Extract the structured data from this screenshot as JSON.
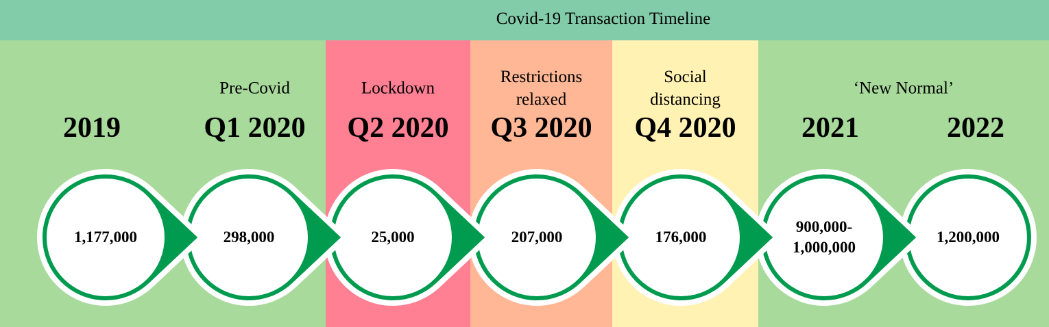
{
  "title": "Covid-19 Transaction Timeline",
  "colors": {
    "header": "#82cca9",
    "base": "#a8da9c",
    "ring": "#009b4e",
    "lockdown": "#ff7f93",
    "relaxed": "#ffb796",
    "distancing": "#fff2b3"
  },
  "columns": [
    {
      "period": "2019",
      "phase": "",
      "value": "1,177,000",
      "color": "#a8da9c"
    },
    {
      "period": "Q1 2020",
      "phase": "Pre-Covid",
      "value": "298,000",
      "color": "#a8da9c"
    },
    {
      "period": "Q2 2020",
      "phase": "Lockdown",
      "value": "25,000",
      "color": "#ff7f93"
    },
    {
      "period": "Q3 2020",
      "phase": "Restrictions relaxed",
      "value": "207,000",
      "color": "#ffb796"
    },
    {
      "period": "Q4 2020",
      "phase": "Social distancing",
      "value": "176,000",
      "color": "#fff2b3"
    },
    {
      "period": "2021",
      "phase": "",
      "value": "900,000- 1,000,000",
      "color": "#a8da9c"
    },
    {
      "period": "2022",
      "phase": "",
      "value": "1,200,000",
      "color": "#a8da9c"
    }
  ],
  "new_normal_label": "‘New Normal’"
}
